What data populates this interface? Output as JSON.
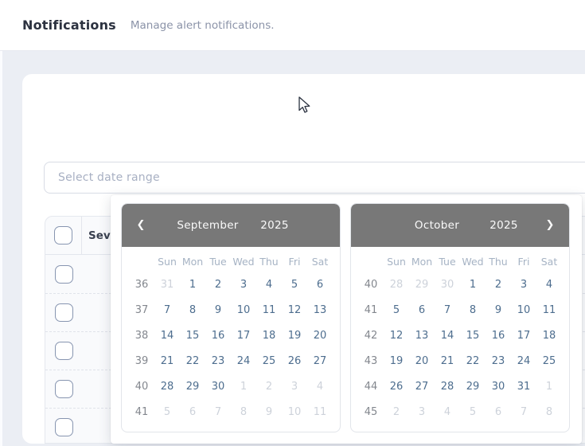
{
  "header": {
    "title": "Notifications",
    "subtitle": "Manage alert notifications."
  },
  "filters": {
    "date_range_placeholder": "Select date range"
  },
  "table": {
    "columns": [
      "Severity"
    ],
    "select_all_checked": false,
    "rows": [
      {
        "checked": false
      },
      {
        "checked": false
      },
      {
        "checked": false
      },
      {
        "checked": false
      },
      {
        "checked": false
      }
    ]
  },
  "datepicker": {
    "prev_icon": "❮",
    "next_icon": "❯",
    "weekday_labels": [
      "Sun",
      "Mon",
      "Tue",
      "Wed",
      "Thu",
      "Fri",
      "Sat"
    ],
    "months": [
      {
        "name": "September",
        "year": "2025",
        "nav": "prev",
        "weeks": [
          {
            "num": "36",
            "days": [
              {
                "d": "31",
                "out": true
              },
              {
                "d": "1"
              },
              {
                "d": "2"
              },
              {
                "d": "3"
              },
              {
                "d": "4"
              },
              {
                "d": "5"
              },
              {
                "d": "6"
              }
            ]
          },
          {
            "num": "37",
            "days": [
              {
                "d": "7"
              },
              {
                "d": "8"
              },
              {
                "d": "9"
              },
              {
                "d": "10"
              },
              {
                "d": "11"
              },
              {
                "d": "12"
              },
              {
                "d": "13"
              }
            ]
          },
          {
            "num": "38",
            "days": [
              {
                "d": "14"
              },
              {
                "d": "15"
              },
              {
                "d": "16"
              },
              {
                "d": "17"
              },
              {
                "d": "18"
              },
              {
                "d": "19"
              },
              {
                "d": "20"
              }
            ]
          },
          {
            "num": "39",
            "days": [
              {
                "d": "21"
              },
              {
                "d": "22"
              },
              {
                "d": "23"
              },
              {
                "d": "24"
              },
              {
                "d": "25"
              },
              {
                "d": "26"
              },
              {
                "d": "27"
              }
            ]
          },
          {
            "num": "40",
            "days": [
              {
                "d": "28"
              },
              {
                "d": "29"
              },
              {
                "d": "30"
              },
              {
                "d": "1",
                "out": true
              },
              {
                "d": "2",
                "out": true
              },
              {
                "d": "3",
                "out": true
              },
              {
                "d": "4",
                "out": true
              }
            ]
          },
          {
            "num": "41",
            "days": [
              {
                "d": "5",
                "out": true
              },
              {
                "d": "6",
                "out": true
              },
              {
                "d": "7",
                "out": true
              },
              {
                "d": "8",
                "out": true
              },
              {
                "d": "9",
                "out": true
              },
              {
                "d": "10",
                "out": true
              },
              {
                "d": "11",
                "out": true
              }
            ]
          }
        ]
      },
      {
        "name": "October",
        "year": "2025",
        "nav": "next",
        "weeks": [
          {
            "num": "40",
            "days": [
              {
                "d": "28",
                "out": true
              },
              {
                "d": "29",
                "out": true
              },
              {
                "d": "30",
                "out": true
              },
              {
                "d": "1"
              },
              {
                "d": "2"
              },
              {
                "d": "3"
              },
              {
                "d": "4"
              }
            ]
          },
          {
            "num": "41",
            "days": [
              {
                "d": "5"
              },
              {
                "d": "6"
              },
              {
                "d": "7"
              },
              {
                "d": "8"
              },
              {
                "d": "9"
              },
              {
                "d": "10"
              },
              {
                "d": "11"
              }
            ]
          },
          {
            "num": "42",
            "days": [
              {
                "d": "12"
              },
              {
                "d": "13"
              },
              {
                "d": "14"
              },
              {
                "d": "15"
              },
              {
                "d": "16"
              },
              {
                "d": "17"
              },
              {
                "d": "18"
              }
            ]
          },
          {
            "num": "43",
            "days": [
              {
                "d": "19"
              },
              {
                "d": "20"
              },
              {
                "d": "21"
              },
              {
                "d": "22"
              },
              {
                "d": "23"
              },
              {
                "d": "24"
              },
              {
                "d": "25"
              }
            ]
          },
          {
            "num": "44",
            "days": [
              {
                "d": "26"
              },
              {
                "d": "27"
              },
              {
                "d": "28"
              },
              {
                "d": "29"
              },
              {
                "d": "30"
              },
              {
                "d": "31"
              },
              {
                "d": "1",
                "out": true
              }
            ]
          },
          {
            "num": "45",
            "days": [
              {
                "d": "2",
                "out": true
              },
              {
                "d": "3",
                "out": true
              },
              {
                "d": "4",
                "out": true
              },
              {
                "d": "5",
                "out": true
              },
              {
                "d": "6",
                "out": true
              },
              {
                "d": "7",
                "out": true
              },
              {
                "d": "8",
                "out": true
              }
            ]
          }
        ]
      }
    ]
  },
  "cursor": {
    "type": "arrow-pointer"
  },
  "colors": {
    "calendar_header_bg": "#787878",
    "day_in_month": "#4d6d8e",
    "day_out_month": "#cdd2da",
    "week_number": "#83878e",
    "weekday_label": "#a6b3c4",
    "page_bg": "#ebeef4",
    "checkbox_border": "#8795b0"
  }
}
